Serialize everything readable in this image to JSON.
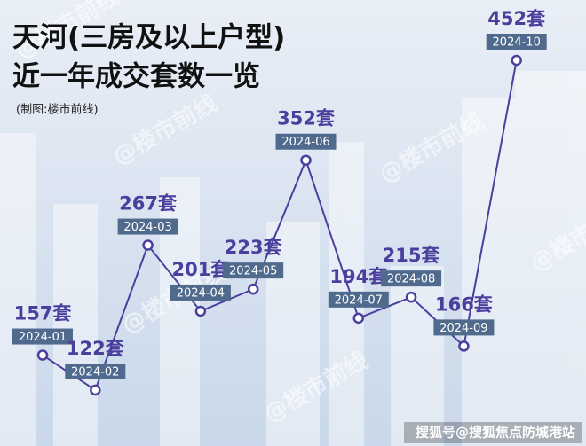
{
  "chart_data": {
    "type": "line",
    "title": "天河(三房及以上户型)",
    "subtitle": "近一年成交套数一览",
    "note": "(制图:楼市前线)",
    "watermark": "@楼市前线",
    "source": "搜狐号@搜狐焦点防城港站",
    "color": "#4b3f9e",
    "categories": [
      "2024-01",
      "2024-02",
      "2024-03",
      "2024-04",
      "2024-05",
      "2024-06",
      "2024-07",
      "2024-08",
      "2024-09",
      "2024-10"
    ],
    "values": [
      157,
      122,
      267,
      201,
      223,
      352,
      194,
      215,
      166,
      452
    ],
    "value_labels": [
      "157套",
      "122套",
      "267套",
      "201套",
      "223套",
      "352套",
      "194套",
      "215套",
      "166套",
      "452套"
    ]
  }
}
